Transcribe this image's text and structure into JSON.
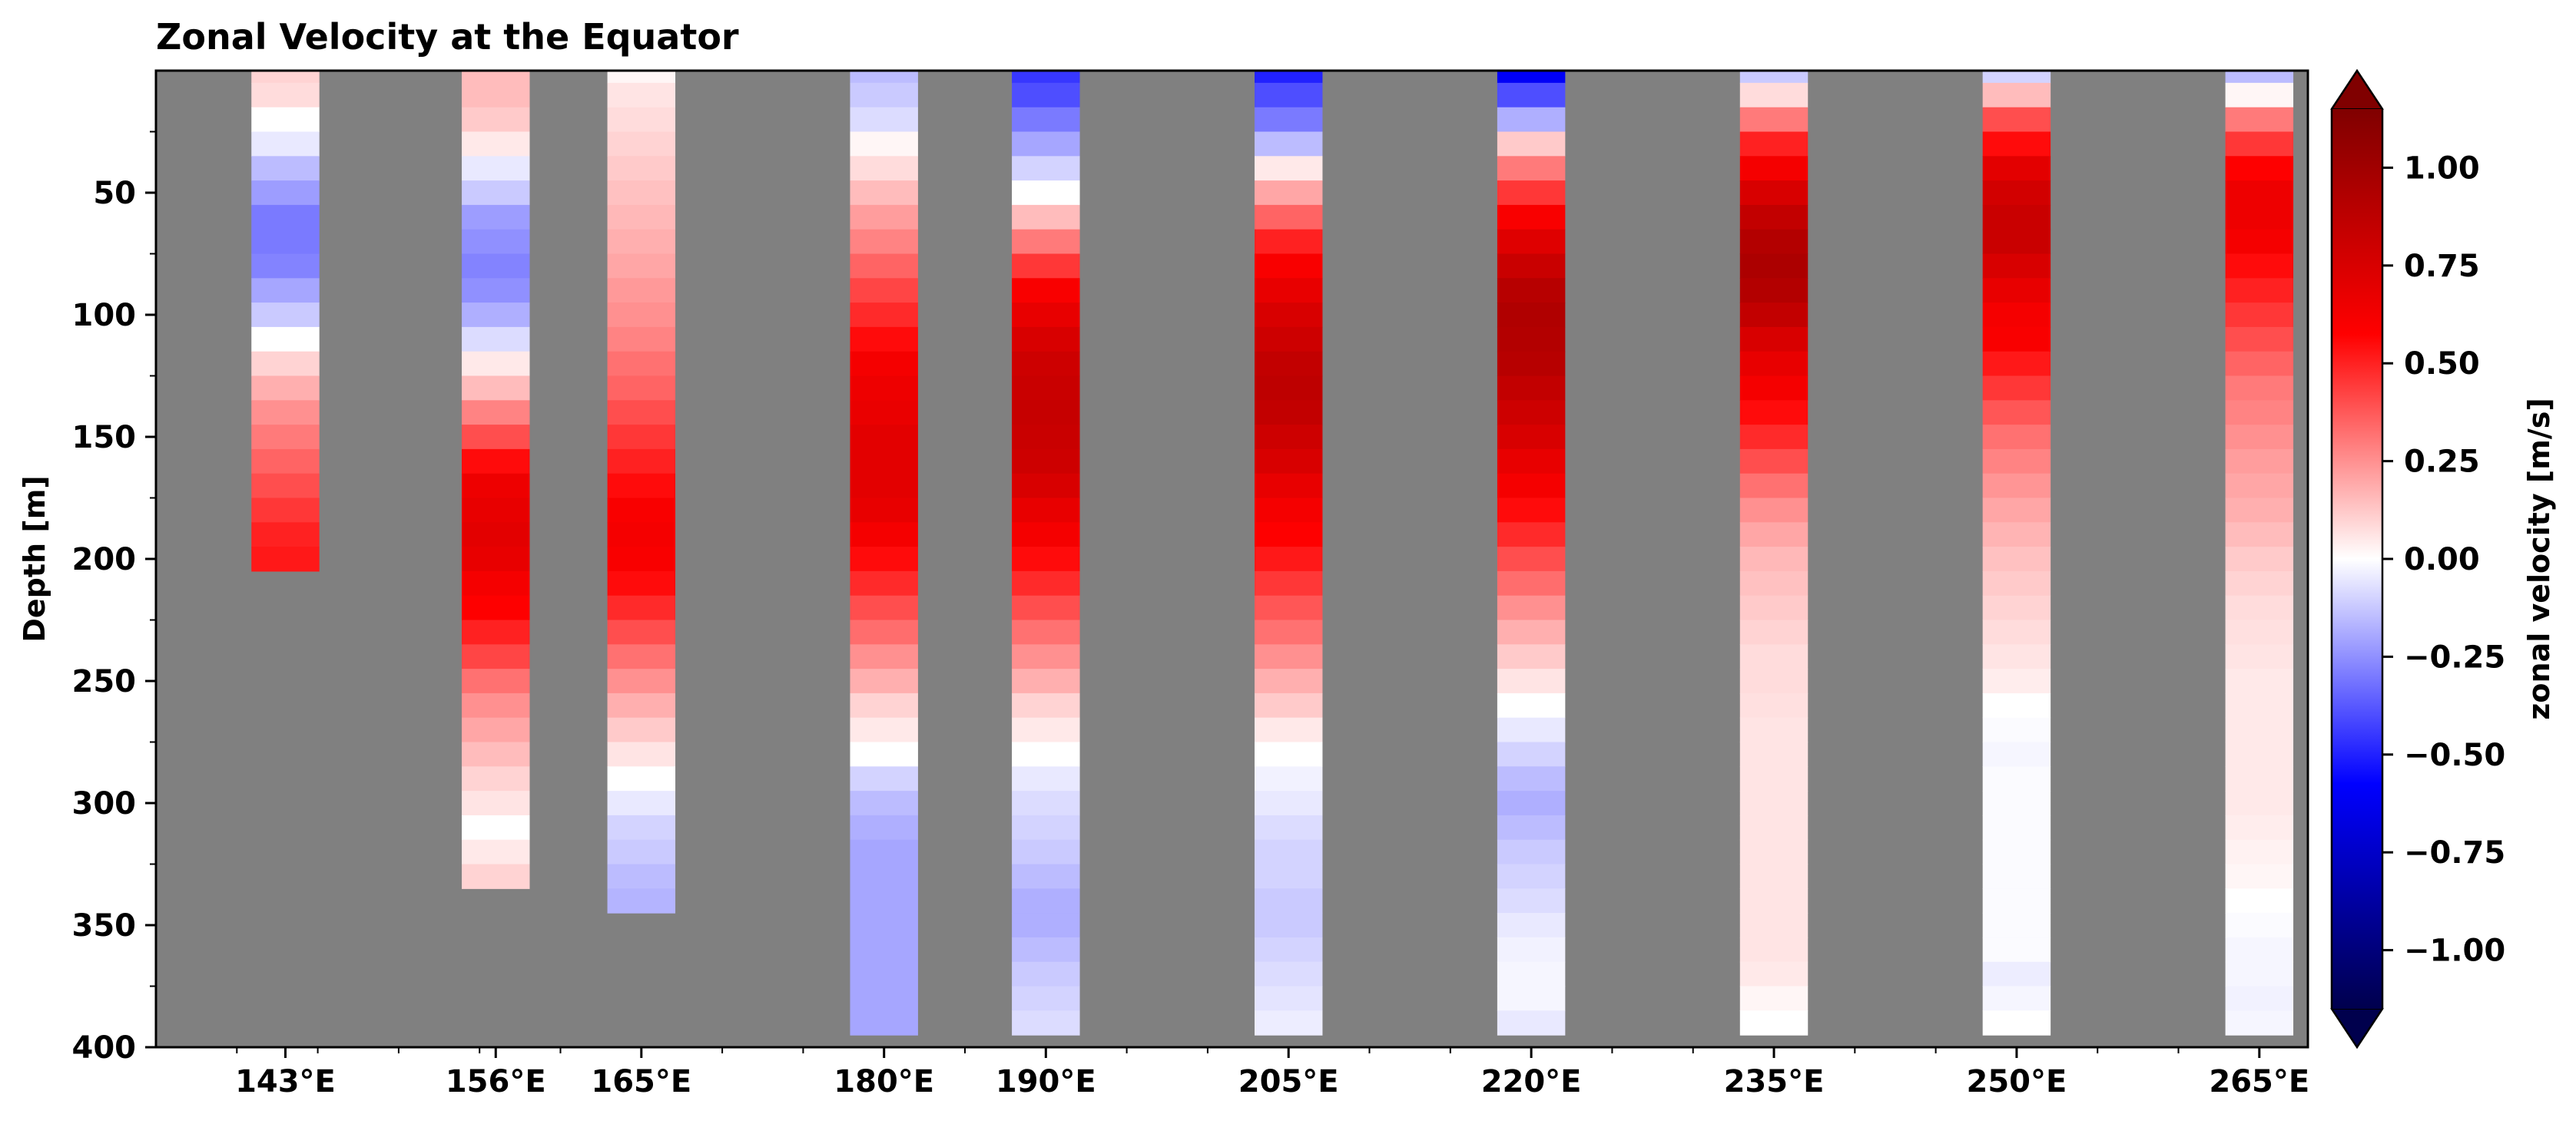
{
  "chart_data": {
    "type": "heatmap",
    "title": "Zonal Velocity at the Equator",
    "xlabel": "",
    "ylabel": "Depth [m]",
    "colorbar_label": "zonal velocity [m/s]",
    "colormap": "seismic",
    "background_color": "#808080",
    "vmin": -1.15,
    "vmax": 1.15,
    "colorbar_extend": "both",
    "xlim": [
      135,
      268
    ],
    "ylim": [
      400,
      0
    ],
    "x_ticks": [
      143,
      156,
      165,
      180,
      190,
      205,
      220,
      235,
      250,
      265
    ],
    "x_tick_labels": [
      "143°E",
      "156°E",
      "165°E",
      "180°E",
      "190°E",
      "205°E",
      "220°E",
      "235°E",
      "250°E",
      "265°E"
    ],
    "y_ticks": [
      50,
      100,
      150,
      200,
      250,
      300,
      350,
      400
    ],
    "y_tick_labels": [
      "50",
      "100",
      "150",
      "200",
      "250",
      "300",
      "350",
      "400"
    ],
    "colorbar_ticks": [
      1.0,
      0.75,
      0.5,
      0.25,
      0.0,
      -0.25,
      -0.5,
      -0.75,
      -1.0
    ],
    "colorbar_tick_labels": [
      "1.00",
      "0.75",
      "0.50",
      "0.25",
      "0.00",
      "−0.25",
      "−0.50",
      "−0.75",
      "−1.00"
    ],
    "column_width_deg": 4.2,
    "depth_top": 5,
    "depth_step": 10,
    "grid": false,
    "columns": [
      {
        "lon": 143,
        "values": [
          0.1,
          0.08,
          0.0,
          -0.05,
          -0.15,
          -0.22,
          -0.3,
          -0.3,
          -0.28,
          -0.2,
          -0.12,
          0.0,
          0.1,
          0.18,
          0.25,
          0.3,
          0.35,
          0.4,
          0.45,
          0.5,
          0.52
        ]
      },
      {
        "lon": 156,
        "values": [
          0.15,
          0.15,
          0.12,
          0.05,
          -0.05,
          -0.12,
          -0.22,
          -0.25,
          -0.28,
          -0.25,
          -0.18,
          -0.08,
          0.05,
          0.15,
          0.28,
          0.4,
          0.55,
          0.65,
          0.68,
          0.7,
          0.68,
          0.62,
          0.58,
          0.5,
          0.42,
          0.32,
          0.25,
          0.2,
          0.15,
          0.1,
          0.06,
          0.0,
          0.05,
          0.1
        ]
      },
      {
        "lon": 165,
        "values": [
          0.02,
          0.06,
          0.08,
          0.1,
          0.12,
          0.14,
          0.16,
          0.18,
          0.2,
          0.23,
          0.25,
          0.28,
          0.32,
          0.35,
          0.4,
          0.45,
          0.5,
          0.55,
          0.6,
          0.62,
          0.6,
          0.55,
          0.48,
          0.4,
          0.32,
          0.25,
          0.18,
          0.12,
          0.06,
          0.0,
          -0.05,
          -0.1,
          -0.12,
          -0.15,
          -0.17
        ]
      },
      {
        "lon": 180,
        "values": [
          -0.15,
          -0.12,
          -0.08,
          0.02,
          0.08,
          0.15,
          0.22,
          0.28,
          0.35,
          0.42,
          0.48,
          0.55,
          0.62,
          0.65,
          0.67,
          0.7,
          0.7,
          0.7,
          0.68,
          0.62,
          0.55,
          0.48,
          0.4,
          0.33,
          0.25,
          0.18,
          0.1,
          0.05,
          0.0,
          -0.1,
          -0.15,
          -0.18,
          -0.2,
          -0.2,
          -0.2,
          -0.2,
          -0.2,
          -0.2,
          -0.2,
          -0.2
        ]
      },
      {
        "lon": 190,
        "values": [
          -0.45,
          -0.4,
          -0.3,
          -0.2,
          -0.1,
          0.0,
          0.15,
          0.3,
          0.45,
          0.6,
          0.68,
          0.75,
          0.8,
          0.82,
          0.83,
          0.82,
          0.8,
          0.75,
          0.68,
          0.62,
          0.55,
          0.48,
          0.4,
          0.32,
          0.25,
          0.18,
          0.1,
          0.05,
          0.0,
          -0.05,
          -0.08,
          -0.1,
          -0.12,
          -0.15,
          -0.18,
          -0.18,
          -0.15,
          -0.12,
          -0.1,
          -0.08
        ]
      },
      {
        "lon": 205,
        "values": [
          -0.5,
          -0.4,
          -0.3,
          -0.15,
          0.05,
          0.2,
          0.35,
          0.5,
          0.6,
          0.68,
          0.75,
          0.8,
          0.85,
          0.87,
          0.85,
          0.8,
          0.75,
          0.68,
          0.62,
          0.58,
          0.52,
          0.45,
          0.38,
          0.32,
          0.25,
          0.18,
          0.12,
          0.05,
          0.0,
          -0.03,
          -0.05,
          -0.08,
          -0.1,
          -0.1,
          -0.12,
          -0.12,
          -0.1,
          -0.08,
          -0.06,
          -0.04
        ]
      },
      {
        "lon": 220,
        "values": [
          -0.6,
          -0.4,
          -0.18,
          0.12,
          0.3,
          0.45,
          0.6,
          0.72,
          0.82,
          0.9,
          0.93,
          0.92,
          0.9,
          0.85,
          0.8,
          0.75,
          0.68,
          0.62,
          0.55,
          0.48,
          0.4,
          0.33,
          0.25,
          0.18,
          0.12,
          0.06,
          0.0,
          -0.05,
          -0.1,
          -0.15,
          -0.18,
          -0.15,
          -0.12,
          -0.1,
          -0.08,
          -0.05,
          -0.03,
          -0.02,
          -0.02,
          -0.05
        ]
      },
      {
        "lon": 235,
        "values": [
          -0.12,
          0.08,
          0.3,
          0.5,
          0.62,
          0.75,
          0.85,
          0.92,
          0.95,
          0.92,
          0.85,
          0.75,
          0.68,
          0.62,
          0.55,
          0.48,
          0.4,
          0.32,
          0.25,
          0.2,
          0.16,
          0.14,
          0.12,
          0.1,
          0.08,
          0.08,
          0.07,
          0.06,
          0.06,
          0.06,
          0.06,
          0.06,
          0.06,
          0.06,
          0.06,
          0.06,
          0.06,
          0.05,
          0.02,
          0.0
        ]
      },
      {
        "lon": 250,
        "values": [
          -0.1,
          0.15,
          0.4,
          0.55,
          0.7,
          0.78,
          0.82,
          0.82,
          0.75,
          0.68,
          0.62,
          0.6,
          0.52,
          0.45,
          0.38,
          0.32,
          0.28,
          0.24,
          0.2,
          0.17,
          0.14,
          0.12,
          0.1,
          0.08,
          0.06,
          0.04,
          0.0,
          -0.01,
          -0.02,
          -0.01,
          -0.01,
          -0.01,
          -0.01,
          -0.01,
          -0.01,
          -0.01,
          -0.01,
          -0.04,
          -0.02,
          0.0
        ]
      },
      {
        "lon": 265,
        "values": [
          -0.15,
          0.02,
          0.3,
          0.45,
          0.58,
          0.65,
          0.65,
          0.62,
          0.55,
          0.5,
          0.45,
          0.4,
          0.35,
          0.3,
          0.28,
          0.25,
          0.22,
          0.2,
          0.18,
          0.15,
          0.12,
          0.1,
          0.08,
          0.07,
          0.06,
          0.05,
          0.05,
          0.05,
          0.05,
          0.05,
          0.05,
          0.04,
          0.03,
          0.02,
          0.0,
          -0.01,
          -0.02,
          -0.02,
          -0.03,
          -0.02
        ]
      }
    ]
  }
}
